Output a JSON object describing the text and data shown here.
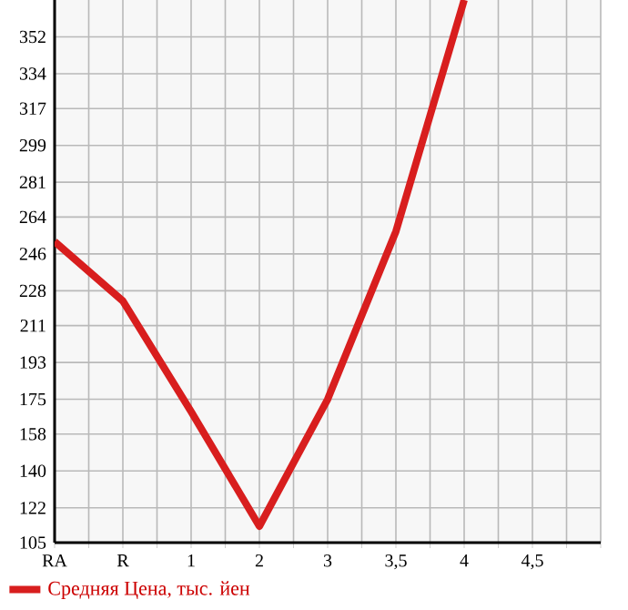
{
  "chart_data": {
    "type": "line",
    "categories": [
      "RA",
      "R",
      "1",
      "2",
      "3",
      "3,5",
      "4",
      "4,5",
      null
    ],
    "series": [
      {
        "name": "Средняя Цена, тыс. йен",
        "color": "#d81e1e",
        "values": [
          252,
          223,
          169,
          113,
          175,
          257,
          370,
          null,
          null
        ]
      }
    ],
    "ylim": [
      105,
      370
    ],
    "yticks": [
      105,
      122,
      140,
      158,
      175,
      193,
      211,
      228,
      246,
      264,
      281,
      299,
      317,
      334,
      352
    ],
    "grid": true,
    "legend": "bottom left",
    "marker": "none",
    "line_style": "solid"
  }
}
